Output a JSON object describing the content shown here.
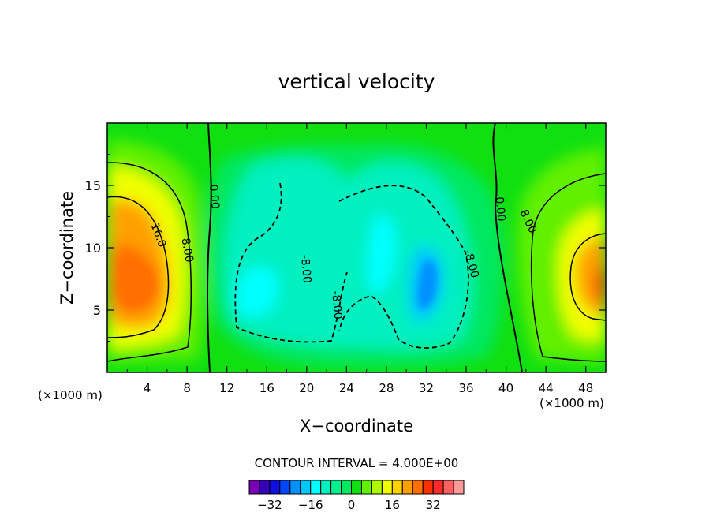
{
  "chart_data": {
    "type": "heatmap",
    "title": "vertical velocity",
    "xlabel": "X−coordinate",
    "ylabel": "Z−coordinate",
    "x_unit_left": "(×1000 m)",
    "x_unit_right": "(×1000 m)",
    "xlim": [
      0,
      50
    ],
    "ylim": [
      0,
      20
    ],
    "x_ticks": [
      4,
      8,
      12,
      16,
      20,
      24,
      28,
      32,
      36,
      40,
      44,
      48
    ],
    "x_tick_labels": [
      "4",
      "8",
      "12",
      "16",
      "20",
      "24",
      "28",
      "32",
      "36",
      "40",
      "44",
      "48"
    ],
    "y_ticks": [
      5,
      10,
      15
    ],
    "y_tick_labels": [
      "5",
      "10",
      "15"
    ],
    "contour_interval_text": "CONTOUR INTERVAL = 4.000E+00",
    "contour_interval": 4,
    "colorbar": {
      "colors": [
        "#7a00b4",
        "#3600b8",
        "#1010e0",
        "#0048ff",
        "#0090ff",
        "#00c8ff",
        "#00ffff",
        "#00f0c0",
        "#00f090",
        "#00e860",
        "#10e010",
        "#60f000",
        "#b0f800",
        "#f0ff00",
        "#ffd000",
        "#ffa000",
        "#ff7000",
        "#ff3000",
        "#ff2a2a",
        "#ff6060",
        "#ff9a9a"
      ],
      "tick_values": [
        -32,
        -16,
        0,
        16,
        32
      ],
      "tick_labels": [
        "−32",
        "−16",
        "0",
        "16",
        "32"
      ]
    },
    "contour_labels": [
      {
        "text": "0.00",
        "x": 10.7,
        "z": 14.1,
        "angle": 85
      },
      {
        "text": "0.00",
        "x": 39.4,
        "z": 13.1,
        "angle": 85
      },
      {
        "text": "16.0",
        "x": 5.1,
        "z": 11.0,
        "angle": 70
      },
      {
        "text": "8.00",
        "x": 8.0,
        "z": 9.8,
        "angle": 80
      },
      {
        "text": "8.00",
        "x": 42.2,
        "z": 12.1,
        "angle": 65
      },
      {
        "text": "-8.00",
        "x": 19.9,
        "z": 8.3,
        "angle": 85
      },
      {
        "text": "-8.00",
        "x": 23.0,
        "z": 5.4,
        "angle": 85
      },
      {
        "text": "-8.00",
        "x": 36.5,
        "z": 8.7,
        "angle": 75
      }
    ],
    "features": [
      {
        "type": "updraft",
        "x": 5.0,
        "z": 7.0,
        "peak": 24
      },
      {
        "type": "updraft",
        "x": 49.5,
        "z": 6.8,
        "peak": 28
      },
      {
        "type": "downdraft",
        "x": 32.0,
        "z": 7.0,
        "peak": -16
      },
      {
        "type": "downdraft",
        "x": 15.5,
        "z": 6.5,
        "peak": -12
      },
      {
        "type": "downdraft",
        "x": 28.0,
        "z": 10.0,
        "peak": -12
      }
    ]
  }
}
